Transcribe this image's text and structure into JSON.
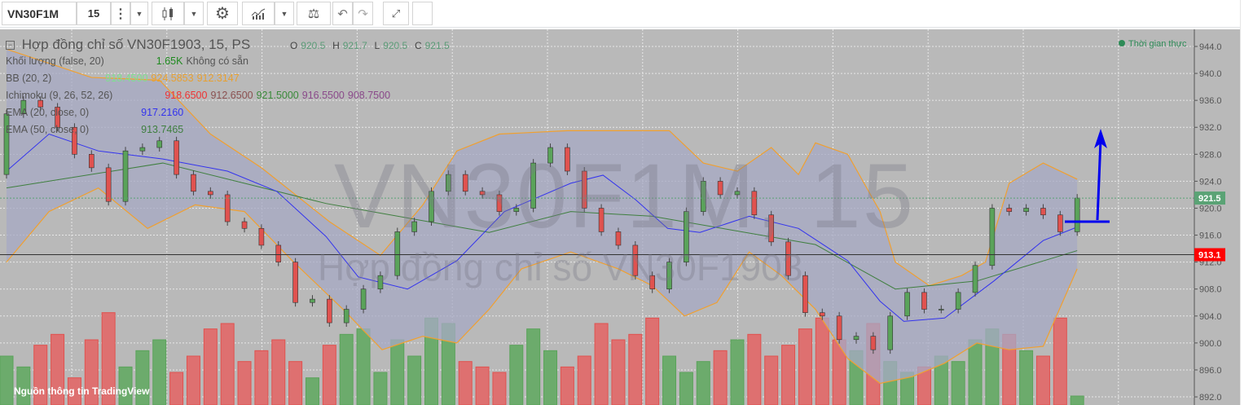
{
  "toolbar": {
    "symbol": "VN30F1M",
    "interval": "15",
    "icons": [
      "more-vertical-icon",
      "chevron-down-icon",
      "candlestick-icon",
      "gear-icon",
      "indicators-icon",
      "scale-balance-icon",
      "undo-icon",
      "redo-icon",
      "fullscreen-icon"
    ]
  },
  "legend": {
    "title": "Hợp đồng chỉ số VN30F1903, 15, PS",
    "ohlc": {
      "o_label": "O",
      "o": "920.5",
      "h_label": "H",
      "h": "921.7",
      "l_label": "L",
      "l": "920.5",
      "c_label": "C",
      "c": "921.5"
    },
    "volume": {
      "label": "Khối lượng (false, 20)",
      "value": "1.65K",
      "note": "Không có sẵn"
    },
    "bb": {
      "label": "BB (20, 2)",
      "values": [
        "918.4500",
        "924.5853",
        "912.3147"
      ]
    },
    "ichimoku": {
      "label": "Ichimoku (9, 26, 52, 26)",
      "values": [
        "918.6500",
        "912.6500",
        "921.5000",
        "916.5500",
        "908.7500"
      ]
    },
    "ema20": {
      "label": "EMA (20, close, 0)",
      "value": "917.2160"
    },
    "ema50": {
      "label": "EMA (50, close, 0)",
      "value": "913.7465"
    }
  },
  "realtime_label": "Thời gian thực",
  "watermark": {
    "symbol": "VN30F1M, 15",
    "description": "Hợp đồng chỉ số VN30F1903"
  },
  "footer": "Nguồn thông tin TradingView",
  "colors": {
    "up": "#5aa35a",
    "down": "#e0524f",
    "bb_band": "#f0a030",
    "bb_fill": "#a7a9c4",
    "ema20": "#3333ee",
    "ema50": "#3f7f3f",
    "last_price": "#5aa375",
    "marker": "#ff0000"
  },
  "chart_data": {
    "type": "candlestick",
    "yaxis": {
      "ticks": [
        "944.0",
        "940.0",
        "936.0",
        "932.0",
        "928.0",
        "924.0",
        "920.0",
        "916.0",
        "912.0",
        "908.0",
        "904.0",
        "900.0",
        "896.0",
        "892.0"
      ],
      "ylim": [
        891.5,
        944.5
      ],
      "side": "right"
    },
    "grid": true,
    "last_price_label": "921.5",
    "marker_label": "913.1",
    "close": [
      934,
      936,
      935,
      932,
      928,
      926,
      921,
      928.5,
      929,
      930,
      925,
      922.5,
      922,
      918,
      917,
      914.5,
      912,
      906,
      906.5,
      903,
      905,
      908,
      910,
      916.5,
      918,
      922.5,
      925,
      922.5,
      922,
      919.5,
      920,
      926.7,
      929,
      925.5,
      920,
      916.5,
      914.5,
      910,
      908,
      912,
      919.5,
      924,
      922,
      922.5,
      919,
      915,
      910,
      904.5,
      904,
      900.5,
      901,
      899,
      904,
      907.5,
      905,
      905,
      907.5,
      911.5,
      920,
      919.5,
      920,
      919,
      916.5,
      921.5
    ],
    "first_open": 925,
    "volume_k": [
      9,
      7,
      11,
      13,
      5,
      12,
      17,
      7,
      10,
      12,
      6,
      9,
      14,
      15,
      8,
      10,
      12,
      8,
      5,
      11,
      13,
      14,
      6,
      12,
      9,
      16,
      15,
      8,
      7,
      6,
      11,
      14,
      10,
      7,
      9,
      15,
      12,
      13,
      16,
      9,
      6,
      8,
      10,
      12,
      13,
      9,
      11,
      14,
      16,
      12,
      10,
      15,
      8,
      6,
      7,
      9,
      8,
      12,
      14,
      13,
      10,
      9,
      16,
      1.65
    ],
    "bb_upper": [
      [
        0,
        943.6
      ],
      [
        5,
        939.4
      ],
      [
        9,
        939
      ],
      [
        12,
        931
      ],
      [
        15,
        926
      ],
      [
        19,
        918
      ],
      [
        22,
        913
      ],
      [
        24.5,
        920.5
      ],
      [
        26.5,
        928.5
      ],
      [
        29,
        931
      ],
      [
        33,
        931.5
      ],
      [
        36,
        931.5
      ],
      [
        39,
        931.5
      ],
      [
        41,
        926.7
      ],
      [
        43,
        925.5
      ],
      [
        45,
        929
      ],
      [
        46.6,
        925
      ],
      [
        47.6,
        929.7
      ],
      [
        49.5,
        928
      ],
      [
        51.4,
        919.5
      ],
      [
        52.3,
        912
      ],
      [
        54.3,
        908.5
      ],
      [
        56.2,
        910
      ],
      [
        57.6,
        912
      ],
      [
        59,
        923.7
      ],
      [
        61,
        926.7
      ],
      [
        63,
        924.3
      ]
    ],
    "bb_lower": [
      [
        0,
        912
      ],
      [
        2.5,
        919.5
      ],
      [
        5.4,
        923
      ],
      [
        8.3,
        917
      ],
      [
        11.1,
        920.5
      ],
      [
        14,
        919.5
      ],
      [
        16.9,
        912
      ],
      [
        19.8,
        905
      ],
      [
        22.1,
        899
      ],
      [
        24.5,
        901
      ],
      [
        26.5,
        900
      ],
      [
        28.4,
        905
      ],
      [
        30.3,
        911
      ],
      [
        33.2,
        913.5
      ],
      [
        36,
        911
      ],
      [
        38,
        908.5
      ],
      [
        39.9,
        904
      ],
      [
        41.8,
        906
      ],
      [
        43.7,
        913.5
      ],
      [
        45.6,
        910
      ],
      [
        47.6,
        905
      ],
      [
        49.5,
        897.7
      ],
      [
        51.4,
        894
      ],
      [
        53.3,
        895
      ],
      [
        55.2,
        897
      ],
      [
        57.1,
        900
      ],
      [
        59,
        899
      ],
      [
        61,
        899.5
      ],
      [
        63,
        911
      ]
    ],
    "ema20": [
      [
        0,
        925.5
      ],
      [
        2.5,
        931
      ],
      [
        5.4,
        928.5
      ],
      [
        9.2,
        927.3
      ],
      [
        13,
        925.5
      ],
      [
        15.9,
        922.5
      ],
      [
        18.8,
        915.8
      ],
      [
        20.7,
        909.8
      ],
      [
        23.6,
        908
      ],
      [
        26.5,
        912.2
      ],
      [
        29.3,
        919.5
      ],
      [
        33.2,
        923.7
      ],
      [
        35.1,
        924.9
      ],
      [
        37,
        921.3
      ],
      [
        38.9,
        917
      ],
      [
        40.8,
        916.4
      ],
      [
        43.7,
        918.8
      ],
      [
        46.6,
        917
      ],
      [
        49.5,
        912.2
      ],
      [
        51.4,
        906.2
      ],
      [
        52.8,
        903.2
      ],
      [
        55.2,
        903.7
      ],
      [
        58.1,
        909.2
      ],
      [
        61,
        915.2
      ],
      [
        63,
        917.2
      ]
    ],
    "ema50": [
      [
        0,
        923
      ],
      [
        9.2,
        926.7
      ],
      [
        18.8,
        920.7
      ],
      [
        28.4,
        916.4
      ],
      [
        33.2,
        919.5
      ],
      [
        38,
        918.8
      ],
      [
        47.6,
        914.6
      ],
      [
        52.3,
        908
      ],
      [
        57.1,
        909.2
      ],
      [
        63,
        913.7
      ]
    ]
  }
}
